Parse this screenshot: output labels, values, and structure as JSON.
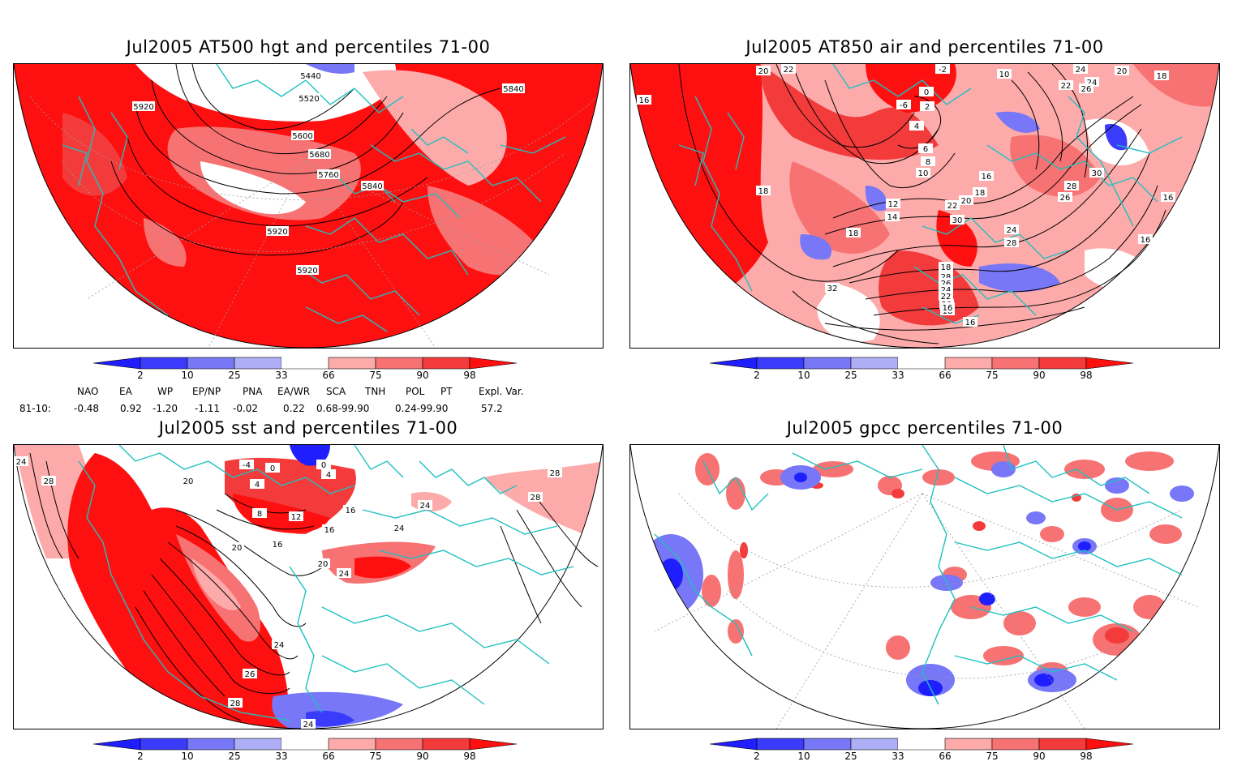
{
  "panels": [
    {
      "title": "Jul2005 AT500 hgt and percentiles 71-00",
      "contour_labels": [
        "5440",
        "5520",
        "5600",
        "5680",
        "5760",
        "5840",
        "5840",
        "5920",
        "5920",
        "5920"
      ]
    },
    {
      "title": "Jul2005 AT850 air and percentiles 71-00",
      "contour_labels": [
        "20",
        "22",
        "-2",
        "24",
        "20",
        "18",
        "16",
        "10",
        "0",
        "-6",
        "2",
        "4",
        "6",
        "8",
        "10",
        "12",
        "14",
        "16",
        "18",
        "18",
        "18",
        "20",
        "22",
        "22",
        "24",
        "24",
        "26",
        "26",
        "28",
        "28",
        "30",
        "30",
        "32",
        "16",
        "16",
        "16",
        "18",
        "28",
        "26",
        "24",
        "22",
        "20",
        "18",
        "16"
      ]
    },
    {
      "title": "Jul2005 sst and percentiles 71-00",
      "contour_labels": [
        "24",
        "28",
        "20",
        "-4",
        "0",
        "0",
        "4",
        "4",
        "8",
        "12",
        "16",
        "16",
        "20",
        "20",
        "24",
        "24",
        "24",
        "24",
        "26",
        "28",
        "28",
        "28",
        "16",
        "24"
      ]
    },
    {
      "title": "Jul2005 gpcc percentiles 71-00",
      "contour_labels": []
    }
  ],
  "colorbar": {
    "ticks": [
      "2",
      "10",
      "25",
      "33",
      "66",
      "75",
      "90",
      "98"
    ],
    "colors": [
      "#1e1efe",
      "#3b3bfb",
      "#7777f7",
      "#aeaef7",
      "#ffffff",
      "#fdaaaa",
      "#f77272",
      "#f33b3b",
      "#fe1010"
    ]
  },
  "teleconnections": {
    "headers": [
      "NAO",
      "EA",
      "WP",
      "EP/NP",
      "PNA",
      "EA/WR",
      "SCA",
      "TNH",
      "POL",
      "PT",
      "Expl. Var."
    ],
    "row_label": "81-10:",
    "values": [
      "-0.48",
      "0.92",
      "-1.20",
      "-1.11",
      "-0.02",
      "0.22",
      "0.68-99.90",
      "0.24-99.90",
      "57.2"
    ]
  }
}
